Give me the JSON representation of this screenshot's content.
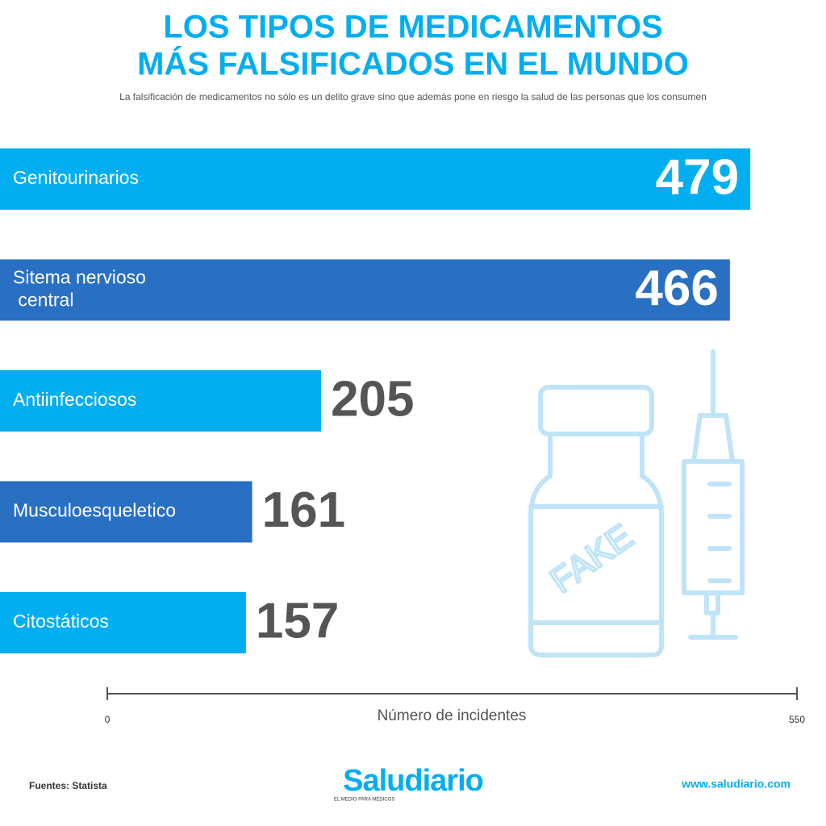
{
  "chart_data": {
    "type": "bar",
    "orientation": "horizontal",
    "title": [
      "LOS TIPOS DE MEDICAMENTOS",
      "MÁS FALSIFICADOS EN EL MUNDO"
    ],
    "subtitle": "La falsificación de medicamentos no sólo es un delito grave sino que además pone en riesgo la salud de las personas que los consumen",
    "categories": [
      "Genitourinarios",
      "Sitema nervioso central",
      "Antiinfecciosos",
      "Musculoesqueletico",
      "Citostáticos"
    ],
    "values": [
      479,
      466,
      205,
      161,
      157
    ],
    "colors": [
      "#03aef0",
      "#2a70c2",
      "#03aef0",
      "#2a70c2",
      "#03aef0"
    ],
    "xlim": [
      0,
      550
    ],
    "xticks": [
      0,
      550
    ],
    "xlabel": "Número de incidentes",
    "illustration_text": "FAKE"
  },
  "footer": {
    "source": "Fuentes: Statista",
    "logo": "Saludiario",
    "tagline": "EL MEDIO PARA MÉDICOS",
    "url": "www.saludiario.com"
  }
}
